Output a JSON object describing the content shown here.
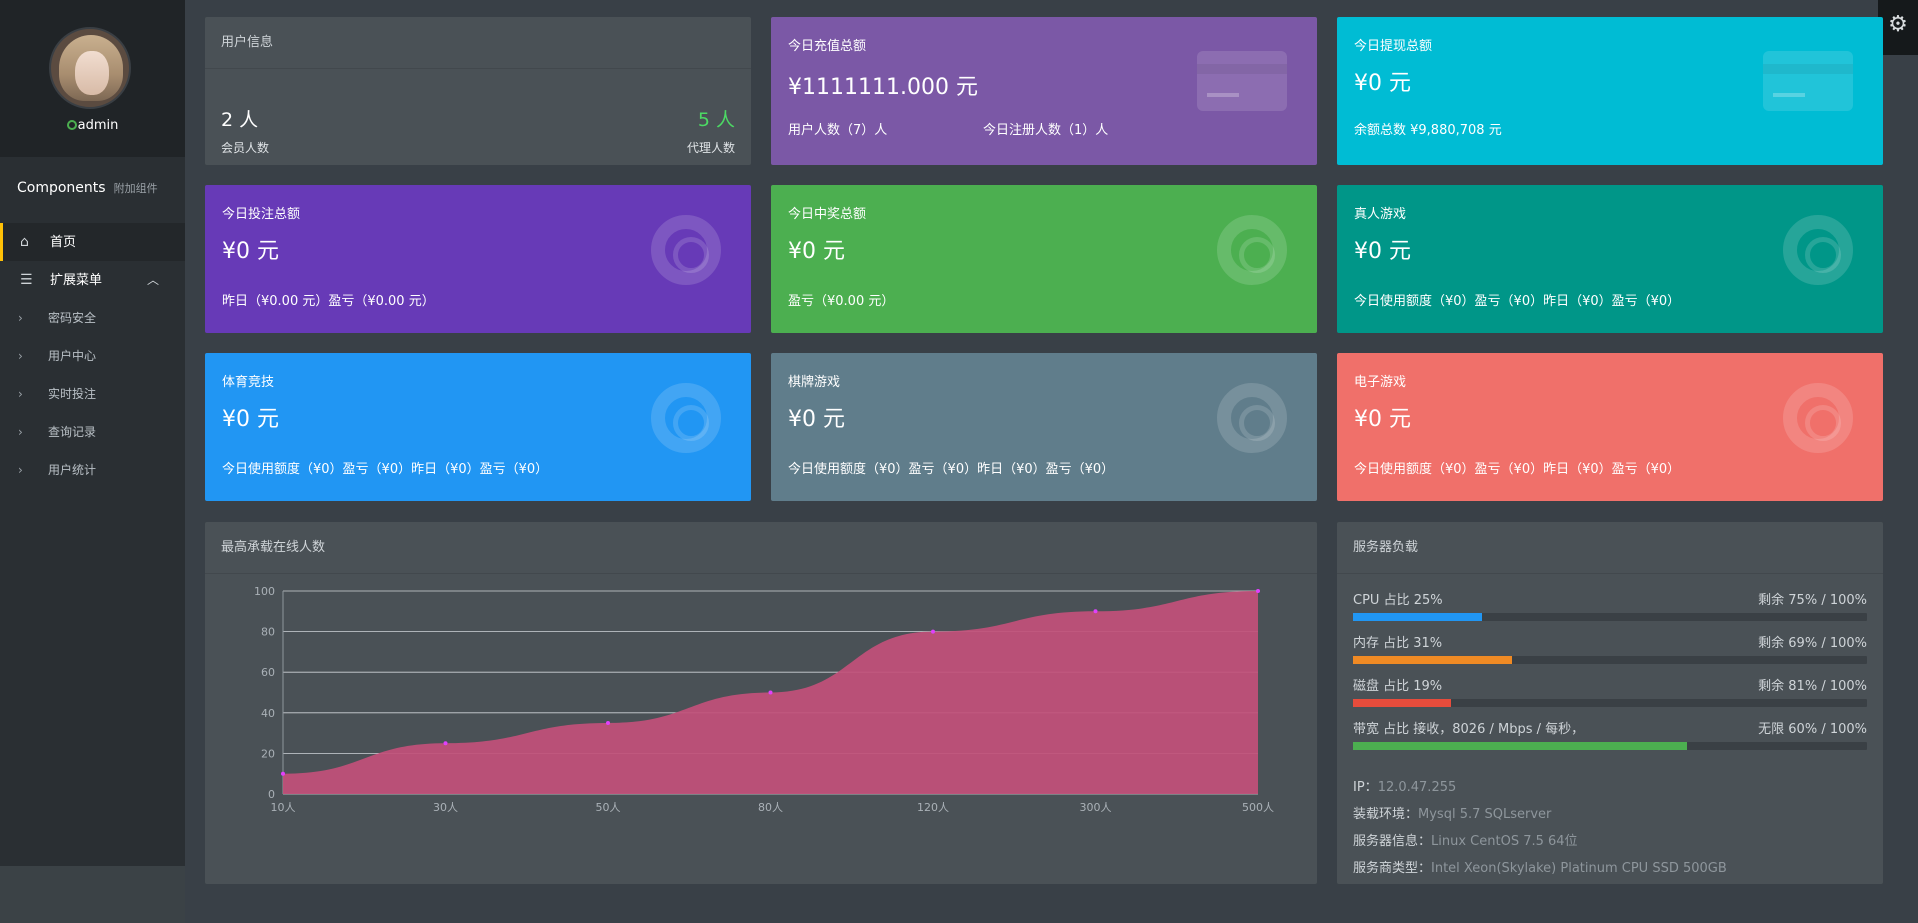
{
  "sidebar": {
    "username": "admin",
    "components_title": "Components",
    "components_sub": "附加组件",
    "home": "首页",
    "menu": "扩展菜单",
    "subitems": [
      "密码安全",
      "用户中心",
      "实时投注",
      "查询记录",
      "用户统计"
    ]
  },
  "user_info": {
    "title": "用户信息",
    "members_value": "2 人",
    "members_label": "会员人数",
    "agents_value": "5 人",
    "agents_label": "代理人数"
  },
  "cards": {
    "recharge": {
      "title": "今日充值总额",
      "value": "¥1111111.000 元",
      "sub1": "用户人数（7）人",
      "sub2": "今日注册人数（1）人",
      "color": "#7b58a6"
    },
    "withdraw": {
      "title": "今日提现总额",
      "value": "¥0 元",
      "sub": "余额总数 ¥9,880,708 元",
      "color": "#00bcd4"
    },
    "bet": {
      "title": "今日投注总额",
      "value": "¥0 元",
      "sub": "昨日（¥0.00 元）盈亏（¥0.00 元）",
      "color": "#673ab7"
    },
    "win": {
      "title": "今日中奖总额",
      "value": "¥0 元",
      "sub": "盈亏（¥0.00 元）",
      "color": "#4caf50"
    },
    "live": {
      "title": "真人游戏",
      "value": "¥0 元",
      "sub": "今日使用额度（¥0）盈亏（¥0）昨日（¥0）盈亏（¥0）",
      "color": "#009688"
    },
    "sports": {
      "title": "体育竞技",
      "value": "¥0 元",
      "sub": "今日使用额度（¥0）盈亏（¥0）昨日（¥0）盈亏（¥0）",
      "color": "#2196f3"
    },
    "chess": {
      "title": "棋牌游戏",
      "value": "¥0 元",
      "sub": "今日使用额度（¥0）盈亏（¥0）昨日（¥0）盈亏（¥0）",
      "color": "#607d8b"
    },
    "egame": {
      "title": "电子游戏",
      "value": "¥0 元",
      "sub": "今日使用额度（¥0）盈亏（¥0）昨日（¥0）盈亏（¥0）",
      "color": "#f0706a"
    }
  },
  "chart_panel": {
    "title": "最高承载在线人数"
  },
  "chart_data": {
    "type": "area",
    "categories": [
      "10人",
      "30人",
      "50人",
      "80人",
      "120人",
      "300人",
      "500人"
    ],
    "values": [
      10,
      25,
      35,
      50,
      80,
      90,
      100
    ],
    "ylim": [
      0,
      100
    ],
    "yticks": [
      0,
      20,
      40,
      60,
      80,
      100
    ],
    "grid": true,
    "fill_color": "#c2507a",
    "point_color": "#e040fb"
  },
  "server": {
    "title": "服务器负载",
    "rows": [
      {
        "left": "CPU 占比 25%",
        "right": "剩余 75% / 100%",
        "percent": 25,
        "color": "#2196f3"
      },
      {
        "left": "内存 占比 31%",
        "right": "剩余 69% / 100%",
        "percent": 31,
        "color": "#f08a24"
      },
      {
        "left": "磁盘 占比 19%",
        "right": "剩余 81% / 100%",
        "percent": 19,
        "color": "#e74c3c"
      },
      {
        "left": "带宽 占比 接收，8026 / Mbps / 每秒，",
        "right": "无限 60% / 100%",
        "percent": 65,
        "color": "#4caf50"
      }
    ],
    "info": [
      {
        "label": "IP：",
        "value": "12.0.47.255"
      },
      {
        "label": "装载环境：",
        "value": "Mysql 5.7 SQLserver"
      },
      {
        "label": "服务器信息：",
        "value": "Linux CentOS 7.5 64位"
      },
      {
        "label": "服务商类型：",
        "value": "Intel Xeon(Skylake) Platinum CPU SSD 500GB"
      }
    ]
  }
}
